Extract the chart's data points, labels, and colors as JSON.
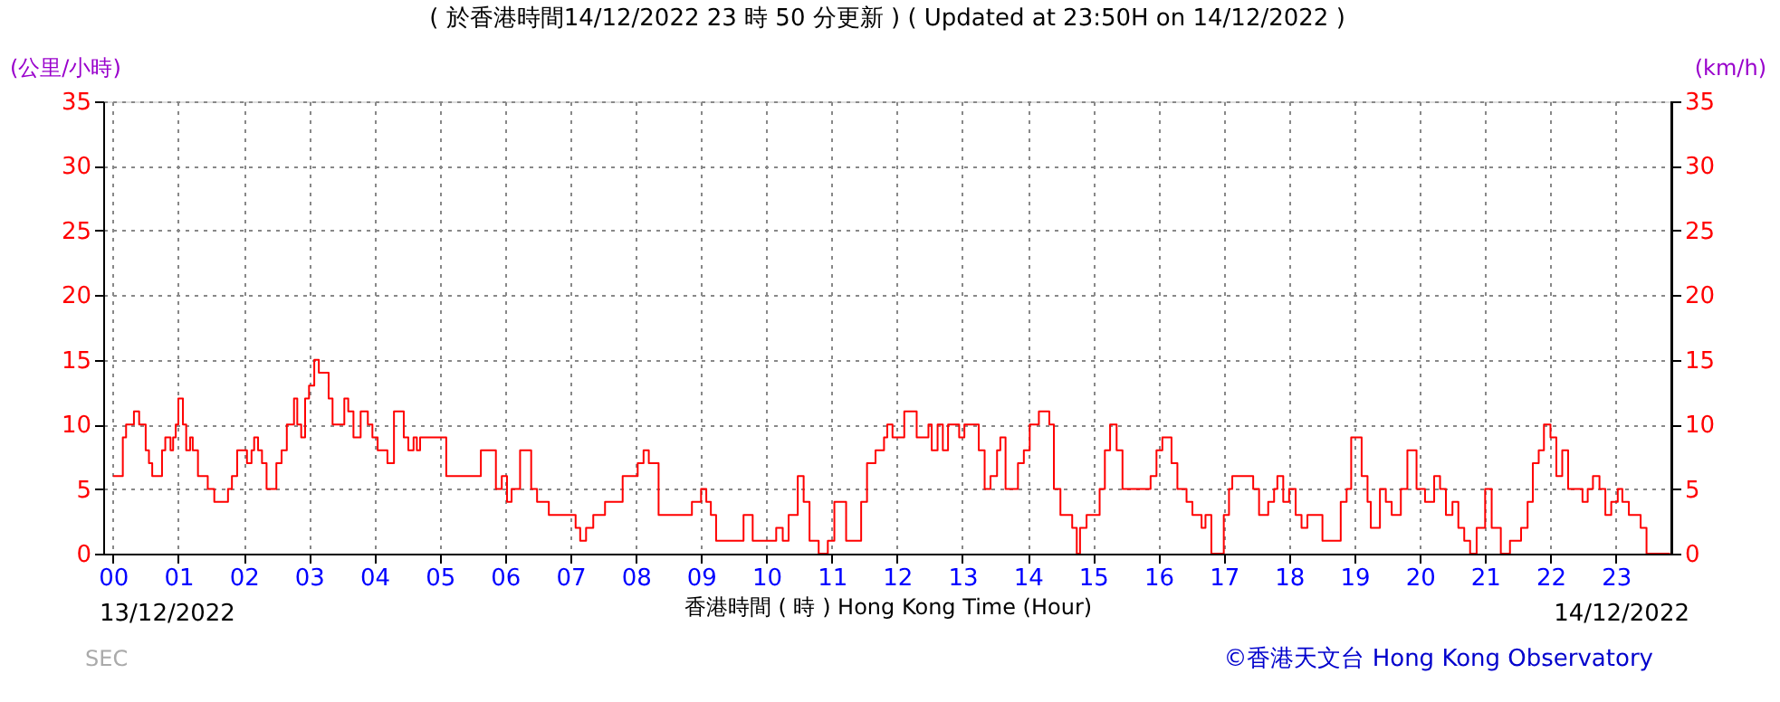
{
  "chart_data": {
    "type": "step",
    "title": "( 於香港時間14/12/2022 23 時 50 分更新 ) ( Updated at 23:50H on 14/12/2022 )",
    "xlabel": "香港時間 ( 時 ) Hong Kong Time (Hour)",
    "ylabel": "(公里/小時)",
    "y2label": "(km/h)",
    "annotations": [
      "13/12/2022",
      "14/12/2022",
      "SEC",
      "©香港天文台 Hong Kong Observatory"
    ],
    "xlim": [
      -0.15,
      23.85
    ],
    "xticks": [
      {
        "value": 0,
        "label": "00"
      },
      {
        "value": 1,
        "label": "01"
      },
      {
        "value": 2,
        "label": "02"
      },
      {
        "value": 3,
        "label": "03"
      },
      {
        "value": 4,
        "label": "04"
      },
      {
        "value": 5,
        "label": "05"
      },
      {
        "value": 6,
        "label": "06"
      },
      {
        "value": 7,
        "label": "07"
      },
      {
        "value": 8,
        "label": "08"
      },
      {
        "value": 9,
        "label": "09"
      },
      10,
      11,
      12,
      13,
      14,
      15,
      16,
      17,
      18,
      19,
      20,
      21,
      22,
      23
    ],
    "ylim": [
      0,
      35
    ],
    "yticks": [
      0,
      5,
      10,
      15,
      20,
      25,
      30,
      35
    ],
    "y2lim": [
      0,
      35
    ],
    "y2ticks": [
      0,
      5,
      10,
      15,
      20,
      25,
      30,
      35
    ],
    "grid": true,
    "series": [
      {
        "color": "#ff0000",
        "x": [
          0,
          0.1,
          0.15,
          0.2,
          0.32,
          0.4,
          0.5,
          0.55,
          0.6,
          0.68,
          0.75,
          0.8,
          0.88,
          0.92,
          0.96,
          1.0,
          1.07,
          1.12,
          1.18,
          1.22,
          1.3,
          1.45,
          1.55,
          1.7,
          1.76,
          1.82,
          1.9,
          2.05,
          2.12,
          2.16,
          2.22,
          2.28,
          2.35,
          2.43,
          2.5,
          2.58,
          2.66,
          2.77,
          2.82,
          2.88,
          2.94,
          3.0,
          3.08,
          3.15,
          3.25,
          3.3,
          3.36,
          3.45,
          3.54,
          3.6,
          3.68,
          3.79,
          3.9,
          3.97,
          4.05,
          4.2,
          4.3,
          4.45,
          4.52,
          4.6,
          4.65,
          4.7,
          4.98,
          5.1,
          5.54,
          5.63,
          5.8,
          5.86,
          5.95,
          6.03,
          6.1,
          6.23,
          6.35,
          6.4,
          6.49,
          6.67,
          6.94,
          7.08,
          7.15,
          7.24,
          7.35,
          7.53,
          7.8,
          8.03,
          8.12,
          8.2,
          8.35,
          8.67,
          8.86,
          9.0,
          9.08,
          9.15,
          9.23,
          9.55,
          9.65,
          9.74,
          9.79,
          10.07,
          10.15,
          10.25,
          10.34,
          10.48,
          10.57,
          10.66,
          10.8,
          10.94,
          11.04,
          11.13,
          11.22,
          11.4,
          11.45,
          11.54,
          11.67,
          11.8,
          11.85,
          11.93,
          12.05,
          12.11,
          12.2,
          12.3,
          12.44,
          12.48,
          12.53,
          12.62,
          12.7,
          12.78,
          12.88,
          12.95,
          13.03,
          13.16,
          13.25,
          13.34,
          13.43,
          13.53,
          13.58,
          13.66,
          13.8,
          13.85,
          13.94,
          14.03,
          14.17,
          14.28,
          14.33,
          14.4,
          14.5,
          14.68,
          14.75,
          14.8,
          14.9,
          15.0,
          15.1,
          15.18,
          15.26,
          15.36,
          15.45,
          15.78,
          15.88,
          15.97,
          16.06,
          16.2,
          16.29,
          16.43,
          16.52,
          16.66,
          16.72,
          16.81,
          16.95,
          17.0,
          17.08,
          17.13,
          17.36,
          17.45,
          17.54,
          17.68,
          17.77,
          17.82,
          17.91,
          18.0,
          18.1,
          18.19,
          18.28,
          18.42,
          18.51,
          18.7,
          18.79,
          18.88,
          18.95,
          19.05,
          19.11,
          19.2,
          19.25,
          19.39,
          19.48,
          19.57,
          19.71,
          19.81,
          19.86,
          19.95,
          20.08,
          20.22,
          20.31,
          20.4,
          20.5,
          20.59,
          20.68,
          20.77,
          20.87,
          21.0,
          21.1,
          21.24,
          21.38,
          21.55,
          21.65,
          21.73,
          21.82,
          21.9,
          22.0,
          22.09,
          22.18,
          22.27,
          22.4,
          22.49,
          22.57,
          22.65,
          22.75,
          22.84,
          22.93,
          23.03,
          23.1,
          23.2,
          23.38,
          23.47,
          23.83
        ],
        "values": [
          6,
          6,
          9,
          10,
          11,
          10,
          8,
          7,
          6,
          6,
          8,
          9,
          8,
          9,
          10,
          12,
          10,
          8,
          9,
          8,
          6,
          5,
          4,
          4,
          5,
          6,
          8,
          7,
          8,
          9,
          8,
          7,
          5,
          5,
          7,
          8,
          10,
          12,
          10,
          9,
          12,
          13,
          15,
          14,
          14,
          12,
          10,
          10,
          12,
          11,
          9,
          11,
          10,
          9,
          8,
          7,
          11,
          9,
          8,
          9,
          8,
          9,
          9,
          6,
          6,
          8,
          8,
          5,
          6,
          4,
          5,
          8,
          8,
          5,
          4,
          3,
          3,
          2,
          1,
          2,
          3,
          4,
          6,
          7,
          8,
          7,
          3,
          3,
          4,
          5,
          4,
          3,
          1,
          1,
          3,
          3,
          1,
          1,
          2,
          1,
          3,
          6,
          4,
          1,
          0,
          1,
          4,
          4,
          1,
          1,
          4,
          7,
          8,
          9,
          10,
          9,
          9,
          11,
          11,
          9,
          9,
          10,
          8,
          10,
          8,
          10,
          10,
          9,
          10,
          10,
          8,
          5,
          6,
          8,
          9,
          5,
          5,
          7,
          8,
          10,
          11,
          11,
          10,
          5,
          3,
          2,
          0,
          2,
          3,
          3,
          5,
          8,
          10,
          8,
          5,
          5,
          6,
          8,
          9,
          7,
          5,
          4,
          3,
          2,
          3,
          0,
          0,
          3,
          5,
          6,
          6,
          5,
          3,
          4,
          5,
          6,
          4,
          5,
          3,
          2,
          3,
          3,
          1,
          1,
          4,
          5,
          9,
          9,
          6,
          4,
          2,
          5,
          4,
          3,
          5,
          8,
          8,
          5,
          4,
          6,
          5,
          3,
          4,
          2,
          1,
          0,
          2,
          5,
          2,
          0,
          1,
          2,
          4,
          7,
          8,
          10,
          9,
          6,
          8,
          5,
          5,
          4,
          5,
          6,
          5,
          3,
          4,
          5,
          4,
          3,
          2,
          0,
          0
        ]
      }
    ]
  }
}
